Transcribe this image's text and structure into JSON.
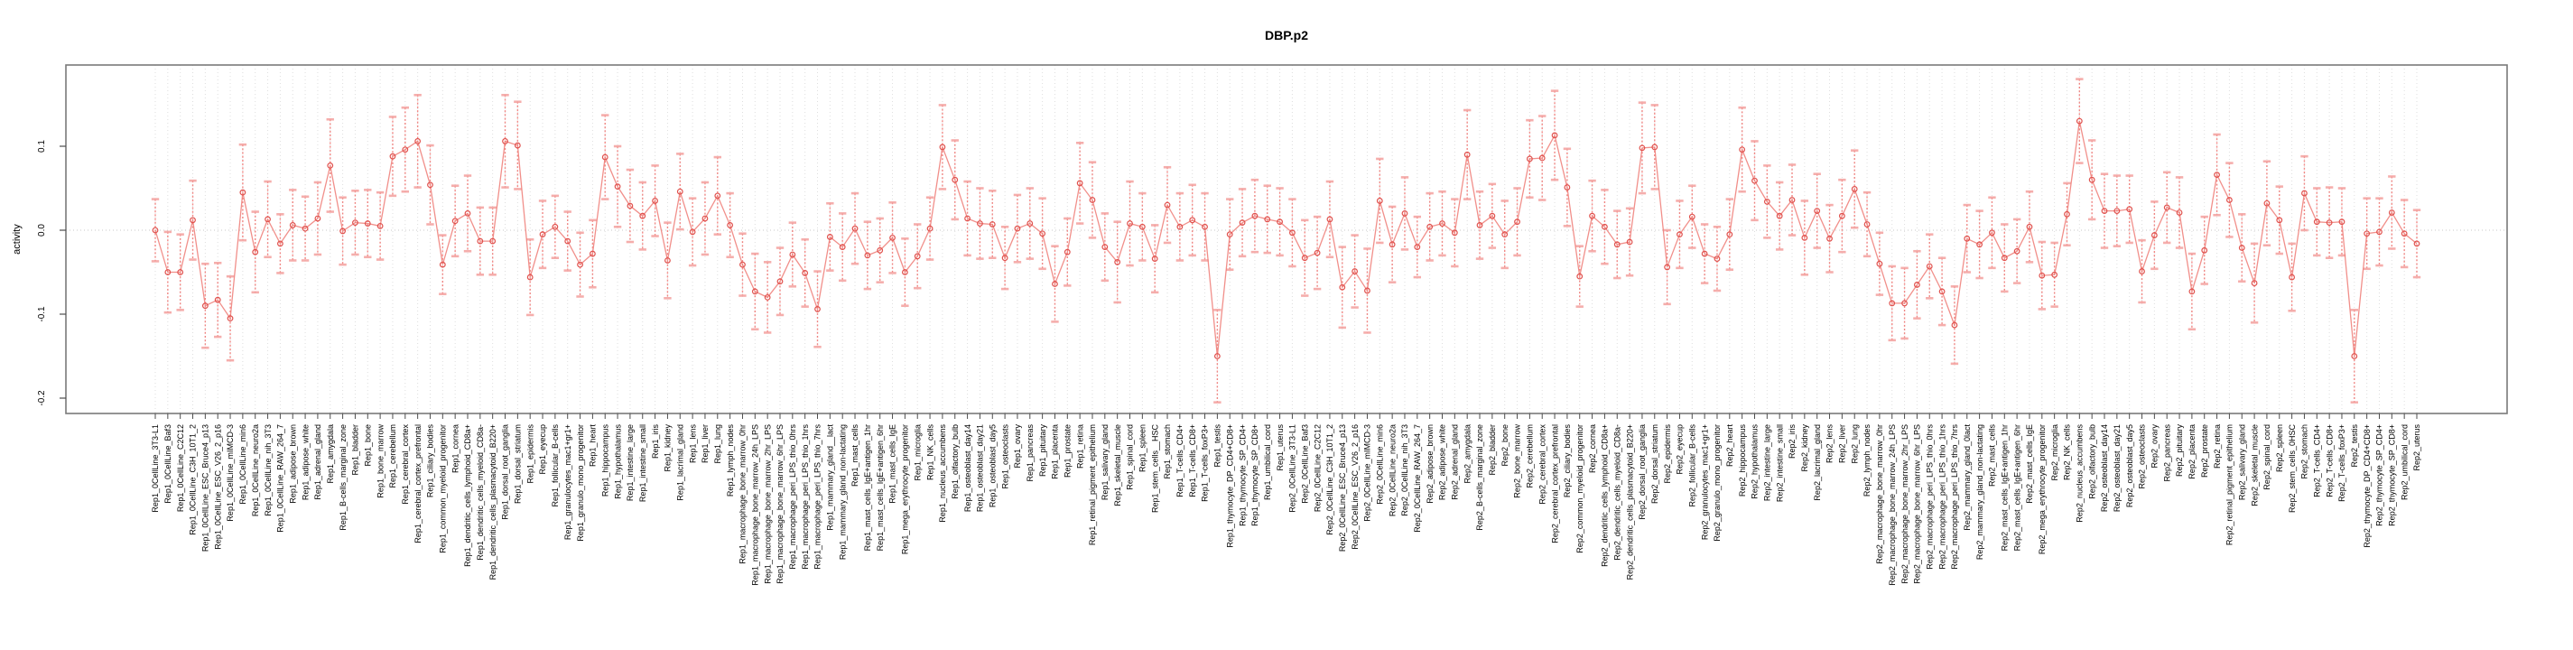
{
  "title": "DBP.p2",
  "y_axis": {
    "label": "activity",
    "tick_labels": [
      "0.1",
      "0.0",
      "-0.1",
      "-0.2"
    ],
    "tick_values": [
      0.1,
      0.0,
      -0.1,
      -0.2
    ]
  },
  "colors": {
    "background": "#ffffff",
    "point_stroke": "#e0524e",
    "error_stem": "#ef6c68",
    "error_cap": "#f4a09e",
    "series_line": "#ef7b76",
    "gridline": "#dedede",
    "zero_line": "#c8c8c8",
    "axis_box": "#7a7a7a",
    "tick": "#4d4d4d",
    "text": "#000000"
  },
  "chart_data": {
    "type": "line",
    "title": "DBP.p2",
    "xlabel": "",
    "ylabel": "activity",
    "ylim": [
      -0.218,
      0.196
    ],
    "yticks": [
      0.1,
      0.0,
      -0.1,
      -0.2
    ],
    "grid": {
      "vertical_per_category": true,
      "horizontal_zero_line": true,
      "style": "dotted"
    },
    "legend": "none",
    "marker": "open-circle",
    "error_bars": true,
    "categories": [
      "Rep1_0CellLine_3T3-L1",
      "Rep1_0CellLine_Baf3",
      "Rep1_0CellLine_C2C12",
      "Rep1_0CellLine_C3H_10T1_2",
      "Rep1_0CellLine_ESC_Bruce4_p13",
      "Rep1_0CellLine_ESC_V26_2_p16",
      "Rep1_0CellLine_mIMCD-3",
      "Rep1_0CellLine_min6",
      "Rep1_0CellLine_neuro2a",
      "Rep1_0CellLine_nih_3T3",
      "Rep1_0CellLine_RAW_264_7",
      "Rep1_adipose_brown",
      "Rep1_adipose_white",
      "Rep1_adrenal_gland",
      "Rep1_amygdala",
      "Rep1_B-cells_marginal_zone",
      "Rep1_bladder",
      "Rep1_bone",
      "Rep1_bone_marrow",
      "Rep1_cerebellum",
      "Rep1_cerebral_cortex",
      "Rep1_cerebral_cortex_prefrontal",
      "Rep1_ciliary_bodies",
      "Rep1_common_myeloid_progenitor",
      "Rep1_cornea",
      "Rep1_dendritic_cells_lymphoid_CD8a+",
      "Rep1_dendritic_cells_myeloid_CD8a-",
      "Rep1_dendritic_cells_plasmacytoid_B220+",
      "Rep1_dorsal_root_ganglia",
      "Rep1_dorsal_striatum",
      "Rep1_epidermis",
      "Rep1_eyecup",
      "Rep1_follicular_B-cells",
      "Rep1_granulocytes_mac1+gr1+",
      "Rep1_granulo_mono_progenitor",
      "Rep1_heart",
      "Rep1_hippocampus",
      "Rep1_hypothalamus",
      "Rep1_intestine_large",
      "Rep1_intestine_small",
      "Rep1_iris",
      "Rep1_kidney",
      "Rep1_lacrimal_gland",
      "Rep1_lens",
      "Rep1_liver",
      "Rep1_lung",
      "Rep1_lymph_nodes",
      "Rep1_macrophage_bone_marrow_0hr",
      "Rep1_macrophage_bone_marrow_24h_LPS",
      "Rep1_macrophage_bone_marrow_2hr_LPS",
      "Rep1_macrophage_bone_marrow_6hr_LPS",
      "Rep1_macrophage_peri_LPS_thio_0hrs",
      "Rep1_macrophage_peri_LPS_thio_1hrs",
      "Rep1_macrophage_peri_LPS_thio_7hrs",
      "Rep1_mammary_gland__lact",
      "Rep1_mammary_gland_non-lactating",
      "Rep1_mast_cells",
      "Rep1_mast_cells_IgE+antigen_1hr",
      "Rep1_mast_cells_IgE+antigen_6hr",
      "Rep1_mast_cells_IgE",
      "Rep1_mega_erythrocyte_progenitor",
      "Rep1_microglia",
      "Rep1_NK_cells",
      "Rep1_nucleus_accumbens",
      "Rep1_olfactory_bulb",
      "Rep1_osteoblast_day14",
      "Rep1_osteoblast_day21",
      "Rep1_osteoblast_day5",
      "Rep1_osteoclasts",
      "Rep1_ovary",
      "Rep1_pancreas",
      "Rep1_pituitary",
      "Rep1_placenta",
      "Rep1_prostate",
      "Rep1_retina",
      "Rep1_retinal_pigment_epithelium",
      "Rep1_salivary_gland",
      "Rep1_skeletal_muscle",
      "Rep1_spinal_cord",
      "Rep1_spleen",
      "Rep1_stem_cells__HSC",
      "Rep1_stomach",
      "Rep1_T-cells_CD4+",
      "Rep1_T-cells_CD8+",
      "Rep1_T-cells_foxP3+",
      "Rep1_testis",
      "Rep1_thymocyte_DP_CD4+CD8+",
      "Rep1_thymocyte_SP_CD4+",
      "Rep1_thymocyte_SP_CD8+",
      "Rep1_umbilical_cord",
      "Rep1_uterus",
      "Rep2_0CellLine_3T3-L1",
      "Rep2_0CellLine_Baf3",
      "Rep2_0CellLine_C2C12",
      "Rep2_0CellLine_C3H_10T1_2",
      "Rep2_0CellLine_ESC_Bruce4_p13",
      "Rep2_0CellLine_ESC_V26_2_p16",
      "Rep2_0CellLine_mIMCD-3",
      "Rep2_0CellLine_min6",
      "Rep2_0CellLine_neuro2a",
      "Rep2_0CellLine_nih_3T3",
      "Rep2_0CellLine_RAW_264_7",
      "Rep2_adipose_brown",
      "Rep2_adipose_white",
      "Rep2_adrenal_gland",
      "Rep2_amygdala",
      "Rep2_B-cells_marginal_zone",
      "Rep2_bladder",
      "Rep2_bone",
      "Rep2_bone_marrow",
      "Rep2_cerebellum",
      "Rep2_cerebral_cortex",
      "Rep2_cerebral_cortex_prefrontal",
      "Rep2_ciliary_bodies",
      "Rep2_common_myeloid_progenitor",
      "Rep2_cornea",
      "Rep2_dendritic_cells_lymphoid_CD8a+",
      "Rep2_dendritic_cells_myeloid_CD8a-",
      "Rep2_dendritic_cells_plasmacytoid_B220+",
      "Rep2_dorsal_root_ganglia",
      "Rep2_dorsal_striatum",
      "Rep2_epidermis",
      "Rep2_eyecup",
      "Rep2_follicular_B-cells",
      "Rep2_granulocytes_mac1+gr1+",
      "Rep2_granulo_mono_progenitor",
      "Rep2_heart",
      "Rep2_hippocampus",
      "Rep2_hypothalamus",
      "Rep2_intestine_large",
      "Rep2_intestine_small",
      "Rep2_iris",
      "Rep2_kidney",
      "Rep2_lacrimal_gland",
      "Rep2_lens",
      "Rep2_liver",
      "Rep2_lung",
      "Rep2_lymph_nodes",
      "Rep2_macrophage_bone_marrow_0hr",
      "Rep2_macrophage_bone_marrow_24h_LPS",
      "Rep2_macrophage_bone_marrow_2hr_LPS",
      "Rep2_macrophage_bone_marrow_6hr_LPS",
      "Rep2_macrophage_peri_LPS_thio_0hrs",
      "Rep2_macrophage_peri_LPS_thio_1hrs",
      "Rep2_macrophage_peri_LPS_thio_7hrs",
      "Rep2_mammary_gland_0lact",
      "Rep2_mammary_gland_non-lactating",
      "Rep2_mast_cells",
      "Rep2_mast_cells_IgE+antigen_1hr",
      "Rep2_mast_cells_IgE+antigen_6hr",
      "Rep2_mast_cells_IgE",
      "Rep2_mega_erythrocyte_progenitor",
      "Rep2_microglia",
      "Rep2_NK_cells",
      "Rep2_nucleus_accumbens",
      "Rep2_olfactory_bulb",
      "Rep2_osteoblast_day14",
      "Rep2_osteoblast_day21",
      "Rep2_osteoblast_day5",
      "Rep2_osteoclasts",
      "Rep2_ovary",
      "Rep2_pancreas",
      "Rep2_pituitary",
      "Rep2_placenta",
      "Rep2_prostate",
      "Rep2_retina",
      "Rep2_retinal_pigment_epithelium",
      "Rep2_salivary_gland",
      "Rep2_skeletal_muscle",
      "Rep2_spinal_cord",
      "Rep2_spleen",
      "Rep2_stem_cells_0HSC",
      "Rep2_stomach",
      "Rep2_T-cells_CD4+",
      "Rep2_T-cells_CD8+",
      "Rep2_T-cells_foxP3+",
      "Rep2_testis",
      "Rep2_thymocyte_DP_CD4+CD8+",
      "Rep2_thymocyte_SP_CD4+",
      "Rep2_thymocyte_SP_CD8+",
      "Rep2_umbilical_cord",
      "Rep2_uterus"
    ],
    "series": [
      {
        "name": "activity",
        "values": [
          0.0,
          -0.05,
          -0.05,
          0.012,
          -0.09,
          -0.083,
          -0.105,
          0.045,
          -0.026,
          0.013,
          -0.016,
          0.006,
          0.002,
          0.014,
          0.077,
          -0.001,
          0.009,
          0.008,
          0.005,
          0.088,
          0.096,
          0.106,
          0.054,
          -0.041,
          0.011,
          0.02,
          -0.013,
          -0.013,
          0.106,
          0.101,
          -0.056,
          -0.005,
          0.004,
          -0.013,
          -0.041,
          -0.028,
          0.087,
          0.052,
          0.029,
          0.017,
          0.035,
          -0.036,
          0.046,
          -0.002,
          0.014,
          0.041,
          0.006,
          -0.041,
          -0.073,
          -0.08,
          -0.061,
          -0.029,
          -0.051,
          -0.094,
          -0.008,
          -0.02,
          0.002,
          -0.03,
          -0.024,
          -0.009,
          -0.05,
          -0.031,
          0.002,
          0.099,
          0.06,
          0.014,
          0.008,
          0.007,
          -0.033,
          0.002,
          0.008,
          -0.004,
          -0.064,
          -0.026,
          0.056,
          0.036,
          -0.02,
          -0.038,
          0.008,
          0.004,
          -0.034,
          0.03,
          0.004,
          0.012,
          0.004,
          -0.15,
          -0.005,
          0.009,
          0.017,
          0.013,
          0.01,
          -0.003,
          -0.033,
          -0.027,
          0.013,
          -0.068,
          -0.049,
          -0.072,
          0.035,
          -0.017,
          0.02,
          -0.02,
          0.004,
          0.008,
          -0.003,
          0.09,
          0.006,
          0.017,
          -0.005,
          0.01,
          0.085,
          0.086,
          0.113,
          0.051,
          -0.055,
          0.017,
          0.004,
          -0.017,
          -0.014,
          0.098,
          0.099,
          -0.044,
          -0.005,
          0.016,
          -0.028,
          -0.034,
          -0.005,
          0.096,
          0.059,
          0.034,
          0.017,
          0.036,
          -0.009,
          0.023,
          -0.01,
          0.017,
          0.049,
          0.007,
          -0.04,
          -0.087,
          -0.087,
          -0.065,
          -0.043,
          -0.073,
          -0.113,
          -0.01,
          -0.017,
          -0.003,
          -0.033,
          -0.025,
          0.004,
          -0.054,
          -0.053,
          0.019,
          0.13,
          0.06,
          0.023,
          0.023,
          0.025,
          -0.049,
          -0.006,
          0.027,
          0.021,
          -0.073,
          -0.024,
          0.066,
          0.036,
          -0.021,
          -0.063,
          0.032,
          0.012,
          -0.056,
          0.044,
          0.01,
          0.009,
          0.01,
          -0.15,
          -0.004,
          -0.002,
          0.021,
          -0.004,
          -0.016
        ],
        "errors": [
          0.037,
          0.048,
          0.045,
          0.047,
          0.05,
          0.044,
          0.05,
          0.057,
          0.048,
          0.045,
          0.035,
          0.042,
          0.038,
          0.043,
          0.055,
          0.04,
          0.038,
          0.04,
          0.04,
          0.047,
          0.05,
          0.055,
          0.047,
          0.035,
          0.042,
          0.045,
          0.04,
          0.04,
          0.055,
          0.052,
          0.045,
          0.04,
          0.037,
          0.035,
          0.038,
          0.04,
          0.05,
          0.048,
          0.043,
          0.04,
          0.042,
          0.045,
          0.045,
          0.04,
          0.043,
          0.046,
          0.038,
          0.037,
          0.045,
          0.042,
          0.04,
          0.038,
          0.04,
          0.045,
          0.04,
          0.04,
          0.042,
          0.04,
          0.038,
          0.042,
          0.04,
          0.038,
          0.037,
          0.05,
          0.047,
          0.044,
          0.042,
          0.04,
          0.037,
          0.04,
          0.042,
          0.042,
          0.045,
          0.04,
          0.048,
          0.045,
          0.04,
          0.048,
          0.05,
          0.04,
          0.04,
          0.045,
          0.04,
          0.042,
          0.04,
          0.055,
          0.042,
          0.04,
          0.043,
          0.04,
          0.04,
          0.04,
          0.045,
          0.043,
          0.045,
          0.048,
          0.043,
          0.05,
          0.05,
          0.045,
          0.043,
          0.036,
          0.04,
          0.038,
          0.04,
          0.053,
          0.04,
          0.038,
          0.04,
          0.04,
          0.046,
          0.05,
          0.053,
          0.046,
          0.036,
          0.042,
          0.044,
          0.04,
          0.04,
          0.054,
          0.05,
          0.044,
          0.04,
          0.037,
          0.035,
          0.038,
          0.042,
          0.05,
          0.047,
          0.043,
          0.04,
          0.042,
          0.044,
          0.044,
          0.04,
          0.043,
          0.046,
          0.038,
          0.037,
          0.044,
          0.042,
          0.04,
          0.038,
          0.04,
          0.046,
          0.04,
          0.04,
          0.042,
          0.04,
          0.038,
          0.042,
          0.04,
          0.038,
          0.037,
          0.05,
          0.047,
          0.044,
          0.042,
          0.04,
          0.037,
          0.04,
          0.042,
          0.042,
          0.045,
          0.04,
          0.048,
          0.044,
          0.04,
          0.047,
          0.05,
          0.04,
          0.04,
          0.044,
          0.04,
          0.042,
          0.04,
          0.055,
          0.042,
          0.04,
          0.043,
          0.04,
          0.04
        ]
      }
    ]
  }
}
